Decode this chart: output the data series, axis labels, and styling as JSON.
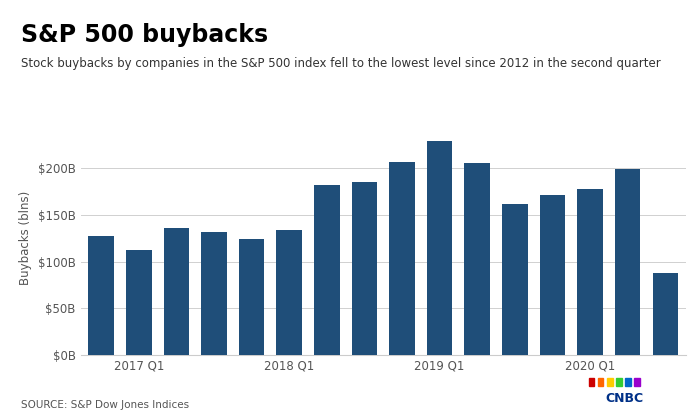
{
  "title": "S&P 500 buybacks",
  "subtitle": "Stock buybacks by companies in the S&P 500 index fell to the lowest level since 2012 in the second quarter",
  "ylabel": "Buybacks (blns)",
  "source": "SOURCE: S&P Dow Jones Indices",
  "bar_color": "#1f4e79",
  "background_color": "#ffffff",
  "header_bar_color": "#1a3a5c",
  "cnbc_color": "#003087",
  "values": [
    128,
    112,
    136,
    132,
    124,
    134,
    182,
    185,
    207,
    229,
    206,
    162,
    172,
    178,
    199,
    88
  ],
  "x_tick_positions": [
    1,
    5,
    9,
    13
  ],
  "x_tick_labels": [
    "2017 Q1",
    "2018 Q1",
    "2019 Q1",
    "2020 Q1"
  ],
  "yticks": [
    0,
    50,
    100,
    150,
    200
  ],
  "ytick_labels": [
    "$0B",
    "$50B",
    "$100B",
    "$150B",
    "$200B"
  ],
  "ylim": [
    0,
    250
  ],
  "grid_color": "#d0d0d0",
  "tick_color": "#555555",
  "spine_color": "#cccccc"
}
